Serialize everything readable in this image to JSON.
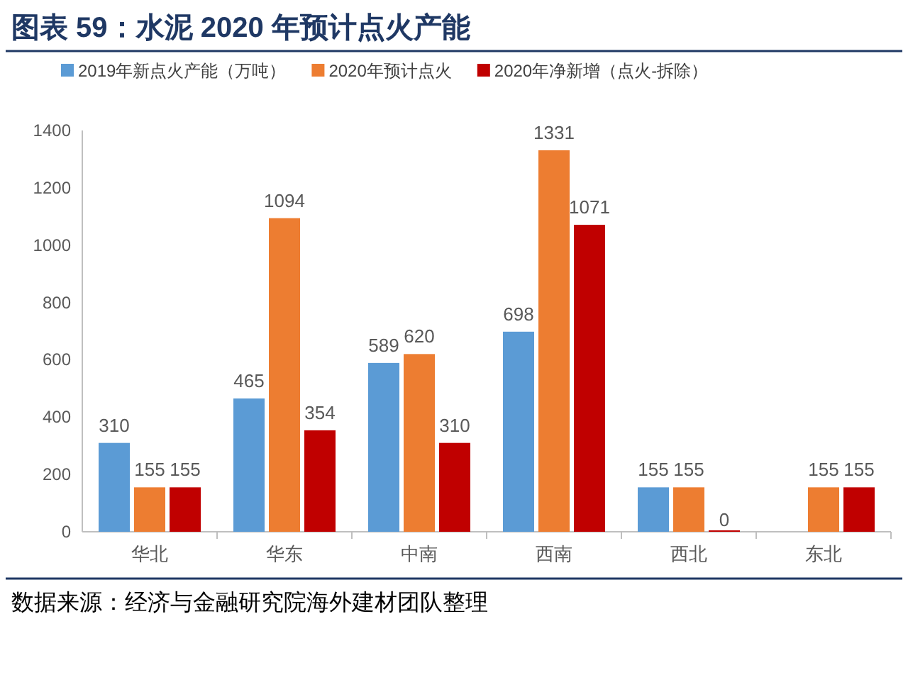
{
  "chart_data": {
    "type": "bar",
    "title": "图表 59：水泥 2020 年预计点火产能",
    "categories": [
      "华北",
      "华东",
      "中南",
      "西南",
      "西北",
      "东北"
    ],
    "series": [
      {
        "name": "2019年新点火产能（万吨）",
        "color": "#5b9bd5",
        "values": [
          310,
          465,
          589,
          698,
          155,
          null
        ]
      },
      {
        "name": "2020年预计点火",
        "color": "#ed7d31",
        "values": [
          155,
          1094,
          620,
          1331,
          155,
          155
        ]
      },
      {
        "name": "2020年净新增（点火-拆除）",
        "color": "#c00000",
        "values": [
          155,
          354,
          310,
          1071,
          0,
          155
        ]
      }
    ],
    "ylim": [
      0,
      1400
    ],
    "yticks": [
      0,
      200,
      400,
      600,
      800,
      1000,
      1200,
      1400
    ],
    "grid": false,
    "legend": "top",
    "data_labels": true,
    "annotations": [
      "数据来源：经济与金融研究院海外建材团队整理"
    ]
  }
}
